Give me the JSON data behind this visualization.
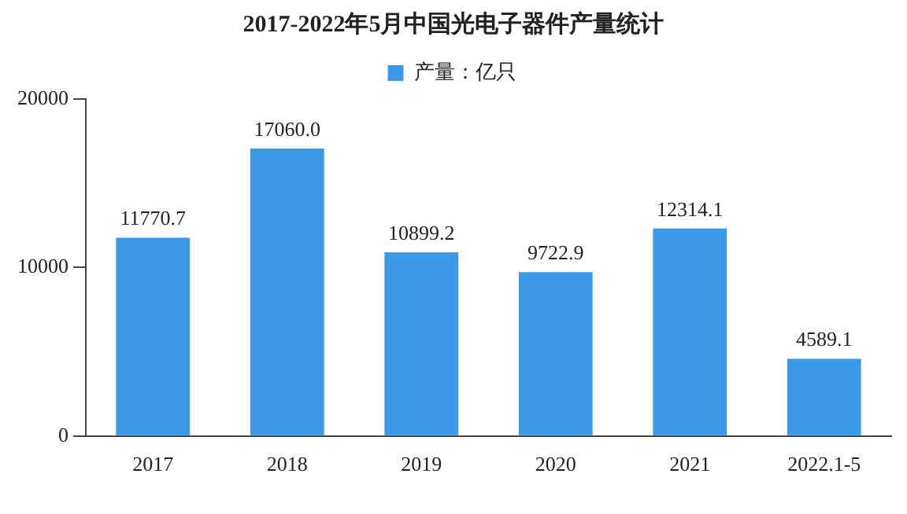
{
  "chart_data": {
    "type": "bar",
    "title": "2017-2022年5月中国光电子器件产量统计",
    "categories": [
      "2017",
      "2018",
      "2019",
      "2020",
      "2021",
      "2022.1-5"
    ],
    "series": [
      {
        "name": "产量：亿只",
        "color": "#3d98e8",
        "values": [
          11770.7,
          17060.0,
          10899.2,
          9722.9,
          12314.1,
          4589.1
        ],
        "value_labels": [
          "11770.7",
          "17060.0",
          "10899.2",
          "9722.9",
          "12314.1",
          "4589.1"
        ]
      }
    ],
    "ylim": [
      0,
      20000
    ],
    "yticks": [
      0,
      10000,
      20000
    ],
    "grid": false,
    "legend": "top"
  }
}
